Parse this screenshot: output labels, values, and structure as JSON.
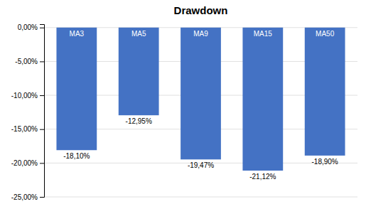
{
  "chart_data": {
    "type": "bar",
    "title": "Drawdown",
    "categories": [
      "MA3",
      "MA5",
      "MA9",
      "MA15",
      "MA50"
    ],
    "values": [
      -18.1,
      -12.95,
      -19.47,
      -21.12,
      -18.9
    ],
    "value_labels": [
      "-18,10%",
      "-12,95%",
      "-19,47%",
      "-21,12%",
      "-18,90%"
    ],
    "data_labels": true,
    "color": "#4472C4",
    "ylim": [
      -25,
      0.5
    ],
    "yticks": [
      {
        "value": 0,
        "label": "0,00%"
      },
      {
        "value": -5,
        "label": "-5,00%"
      },
      {
        "value": -10,
        "label": "-10,00%"
      },
      {
        "value": -15,
        "label": "-15,00%"
      },
      {
        "value": -20,
        "label": "-20,00%"
      },
      {
        "value": -25,
        "label": "-25,00%"
      }
    ],
    "grid": true
  }
}
